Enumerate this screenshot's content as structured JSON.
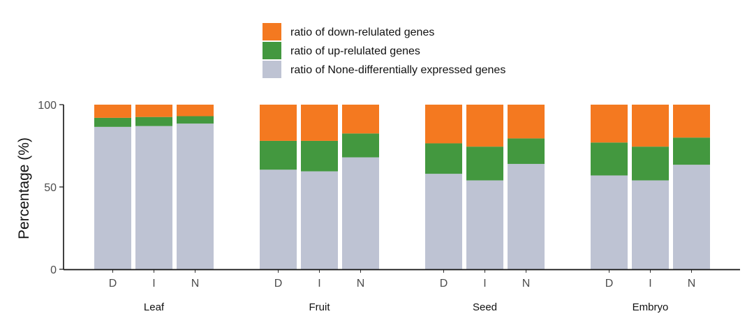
{
  "chart_data": {
    "type": "bar",
    "stacked": true,
    "title": "",
    "xlabel": "",
    "ylabel": "Percentage (%)",
    "ylim": [
      0,
      100
    ],
    "yticks": [
      0,
      50,
      100
    ],
    "grid": false,
    "legend_position": "top-center",
    "groups": [
      "Leaf",
      "Fruit",
      "Seed",
      "Embryo"
    ],
    "categories": [
      "D",
      "I",
      "N"
    ],
    "series": [
      {
        "name": "ratio of None-differentially expressed genes",
        "color": "#bec3d3",
        "values": [
          [
            86.5,
            87,
            88.5
          ],
          [
            60.5,
            59.5,
            68
          ],
          [
            58,
            54,
            64
          ],
          [
            57,
            54,
            63.5
          ]
        ]
      },
      {
        "name": "ratio of up-relulated genes",
        "color": "#43983f",
        "values": [
          [
            5.5,
            5.5,
            4.5
          ],
          [
            17.5,
            18.5,
            14.5
          ],
          [
            18.5,
            20.5,
            15.5
          ],
          [
            20,
            20.5,
            16.5
          ]
        ]
      },
      {
        "name": "ratio of down-relulated genes",
        "color": "#f47920",
        "values": [
          [
            8,
            7.5,
            7
          ],
          [
            22,
            22,
            17.5
          ],
          [
            23.5,
            25.5,
            20.5
          ],
          [
            23,
            25.5,
            20
          ]
        ]
      }
    ],
    "legend_order": [
      2,
      1,
      0
    ]
  }
}
